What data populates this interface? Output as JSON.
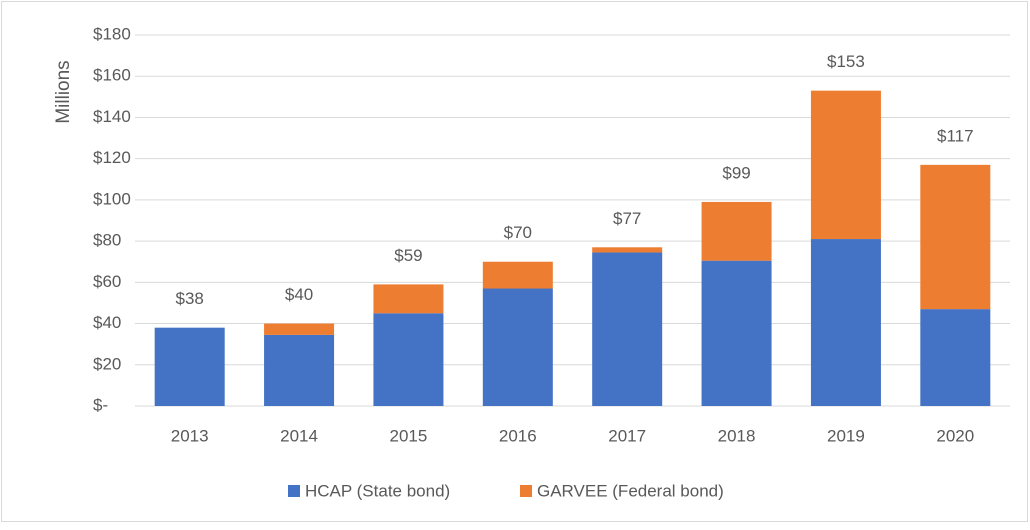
{
  "chart_data": {
    "type": "stacked_bar",
    "y_label": "Millions",
    "categories": [
      "2013",
      "2014",
      "2015",
      "2016",
      "2017",
      "2018",
      "2019",
      "2020"
    ],
    "series": [
      {
        "name": "HCAP (State bond)",
        "color": "#4472c4",
        "values": [
          38,
          34.5,
          45,
          57,
          74.5,
          70.5,
          81,
          47
        ]
      },
      {
        "name": "GARVEE (Federal bond)",
        "color": "#ed7d31",
        "values": [
          0,
          5.5,
          14,
          13,
          2.5,
          28.5,
          72,
          70
        ]
      }
    ],
    "totals": {
      "values": [
        38,
        40,
        59,
        70,
        77,
        99,
        153,
        117
      ],
      "value_labels": [
        "$38",
        "$40",
        "$59",
        "$70",
        "$77",
        "$99",
        "$153",
        "$117"
      ]
    },
    "ylim": [
      0,
      180
    ],
    "yticks": [
      {
        "value": 0,
        "label": "$-"
      },
      {
        "value": 20,
        "label": "$20"
      },
      {
        "value": 40,
        "label": "$40"
      },
      {
        "value": 60,
        "label": "$60"
      },
      {
        "value": 80,
        "label": "$80"
      },
      {
        "value": 100,
        "label": "$100"
      },
      {
        "value": 120,
        "label": "$120"
      },
      {
        "value": 140,
        "label": "$140"
      },
      {
        "value": 160,
        "label": "$160"
      },
      {
        "value": 180,
        "label": "$180"
      }
    ],
    "grid": true,
    "legend": "bottom"
  }
}
